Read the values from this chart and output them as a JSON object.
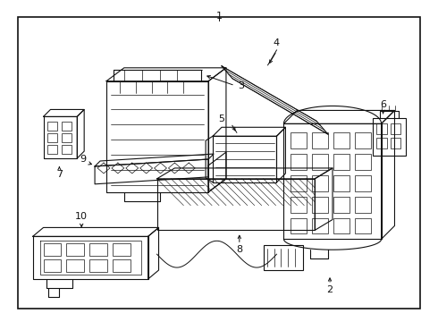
{
  "background_color": "#ffffff",
  "border_color": "#111111",
  "line_color": "#111111",
  "text_color": "#111111",
  "fig_width": 4.9,
  "fig_height": 3.6,
  "dpi": 100
}
